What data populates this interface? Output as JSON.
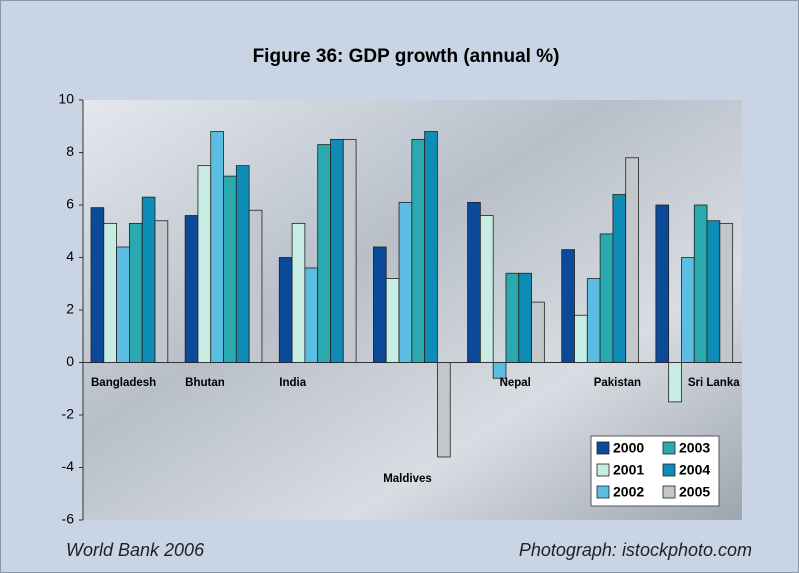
{
  "chart_data": {
    "type": "bar",
    "title": "Figure 36: GDP growth (annual %)",
    "categories": [
      "Bangladesh",
      "Bhutan",
      "India",
      "Maldives",
      "Nepal",
      "Pakistan",
      "Sri Lanka"
    ],
    "series": [
      {
        "name": "2000",
        "color": "#0b4a99",
        "values": [
          5.9,
          5.6,
          4.0,
          4.4,
          6.1,
          4.3,
          6.0
        ]
      },
      {
        "name": "2001",
        "color": "#c6ece3",
        "values": [
          5.3,
          7.5,
          5.3,
          3.2,
          5.6,
          1.8,
          -1.5
        ]
      },
      {
        "name": "2002",
        "color": "#5bbde2",
        "values": [
          4.4,
          8.8,
          3.6,
          6.1,
          -0.6,
          3.2,
          4.0
        ]
      },
      {
        "name": "2003",
        "color": "#2aa9ae",
        "values": [
          5.3,
          7.1,
          8.3,
          8.5,
          3.4,
          4.9,
          6.0
        ]
      },
      {
        "name": "2004",
        "color": "#0e8cb6",
        "values": [
          6.3,
          7.5,
          8.5,
          8.8,
          3.4,
          6.4,
          5.4
        ]
      },
      {
        "name": "2005",
        "color": "#c3c7cb",
        "values": [
          5.4,
          5.8,
          8.5,
          -3.6,
          2.3,
          7.8,
          5.3
        ]
      }
    ],
    "ylim": [
      -6,
      10
    ],
    "yticks": [
      -6,
      -4,
      -2,
      0,
      2,
      4,
      6,
      8,
      10
    ],
    "legend": "lower right",
    "footnote_left": "World Bank 2006",
    "footnote_right": "Photograph: istockphoto.com"
  }
}
